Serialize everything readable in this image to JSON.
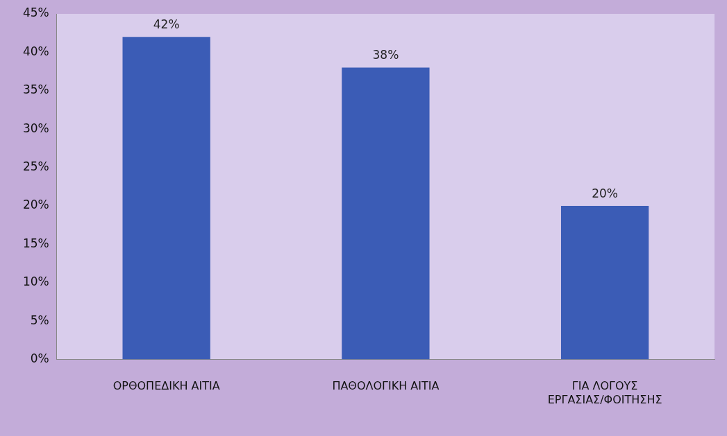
{
  "chart_data": {
    "type": "bar",
    "categories": [
      "ΟΡΘΟΠΕΔΙΚΗ ΑΙΤΙΑ",
      "ΠΑΘΟΛΟΓΙΚΗ ΑΙΤΙΑ",
      "ΓΙΑ ΛΟΓΟΥΣ ΕΡΓΑΣΙΑΣ/ΦΟΙΤΗΣΗΣ"
    ],
    "values": [
      42,
      38,
      20
    ],
    "value_labels": [
      "42%",
      "38%",
      "20%"
    ],
    "color": "#3b5cb6",
    "ylim": [
      0,
      45
    ],
    "yticks": [
      {
        "value": 0,
        "label": "0%"
      },
      {
        "value": 5,
        "label": "5%"
      },
      {
        "value": 10,
        "label": "10%"
      },
      {
        "value": 15,
        "label": "15%"
      },
      {
        "value": 20,
        "label": "20%"
      },
      {
        "value": 25,
        "label": "25%"
      },
      {
        "value": 30,
        "label": "30%"
      },
      {
        "value": 35,
        "label": "35%"
      },
      {
        "value": 40,
        "label": "40%"
      },
      {
        "value": 45,
        "label": "45%"
      }
    ],
    "grid": false,
    "legend": false
  }
}
